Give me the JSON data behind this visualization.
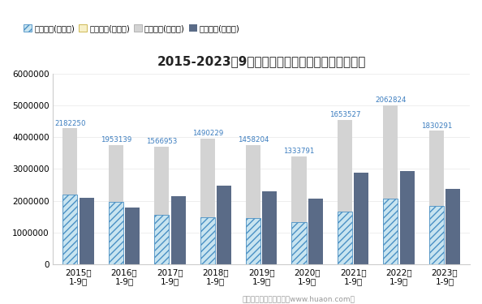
{
  "title": "2015-2023年9月浙江省外商投资企业进出口差额图",
  "categories": [
    "2015年\n1-9月",
    "2016年\n1-9月",
    "2017年\n1-9月",
    "2018年\n1-9月",
    "2019年\n1-9月",
    "2020年\n1-9月",
    "2021年\n1-9月",
    "2022年\n1-9月",
    "2023年\n1-9月"
  ],
  "export_total": [
    4280000,
    3750000,
    3700000,
    3960000,
    3750000,
    3400000,
    4550000,
    5000000,
    4200000
  ],
  "import_total": [
    2097750,
    1796861,
    2133047,
    2469771,
    2291796,
    2066209,
    2896473,
    2937176,
    2369709
  ],
  "surplus": [
    2182250,
    1953139,
    1566953,
    1490229,
    1458204,
    1333791,
    1653527,
    2062824,
    1830291
  ],
  "surplus_labels": [
    "2182250",
    "1953139",
    "1566953",
    "1490229",
    "1458204",
    "1333791",
    "1653527",
    "2062824",
    "1830291"
  ],
  "color_export": "#d3d3d3",
  "color_import": "#5a6b87",
  "color_surplus_fill": "#c8e4f0",
  "color_surplus_edge": "#4a90c4",
  "color_surplus_hatch": "#4a90c4",
  "color_label": "#3a7cbf",
  "legend_labels": [
    "贸易顺差(万美元)",
    "贸易逆差(万美元)",
    "出口总额(万美元)",
    "进口总额(万美元)"
  ],
  "ylim": [
    0,
    6000000
  ],
  "yticks": [
    0,
    1000000,
    2000000,
    3000000,
    4000000,
    5000000,
    6000000
  ],
  "footer": "制图：华经产业研究院（www.huaon.com）",
  "background_color": "#ffffff"
}
